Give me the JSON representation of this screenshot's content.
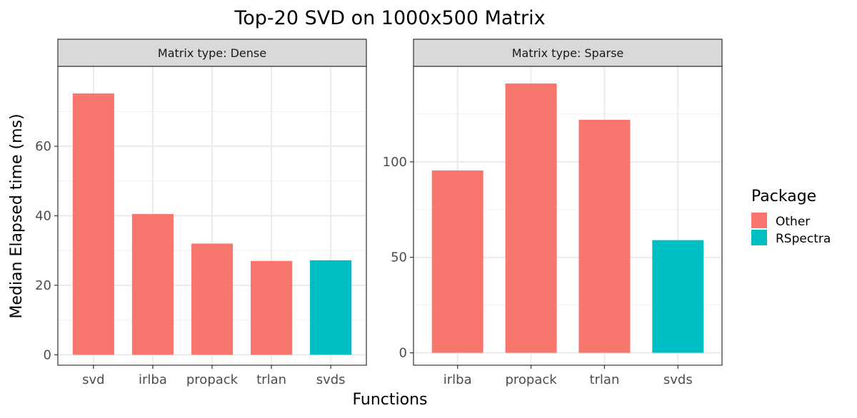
{
  "chart_data": {
    "type": "bar",
    "title": "Top-20 SVD on 1000x500 Matrix",
    "xlabel": "Functions",
    "ylabel": "Median Elapsed time (ms)",
    "legend": {
      "title": "Package",
      "position": "right",
      "entries": [
        {
          "name": "Other",
          "color": "#F8766D"
        },
        {
          "name": "RSpectra",
          "color": "#00BFC4"
        }
      ]
    },
    "grid": true,
    "facets": [
      {
        "strip": "Matrix type: Dense",
        "categories": [
          "svd",
          "irlba",
          "propack",
          "trlan",
          "svds"
        ],
        "values": [
          75.2,
          40.5,
          32.0,
          27.0,
          27.2
        ],
        "package": [
          "Other",
          "Other",
          "Other",
          "Other",
          "RSpectra"
        ],
        "ylim": [
          -3,
          83
        ],
        "yticks": [
          0,
          20,
          40,
          60
        ]
      },
      {
        "strip": "Matrix type: Sparse",
        "categories": [
          "irlba",
          "propack",
          "trlan",
          "svds"
        ],
        "values": [
          95.5,
          141.0,
          122.0,
          59.0
        ],
        "package": [
          "Other",
          "Other",
          "Other",
          "RSpectra"
        ],
        "ylim": [
          -6.5,
          150
        ],
        "yticks": [
          0,
          50,
          100
        ]
      }
    ]
  }
}
